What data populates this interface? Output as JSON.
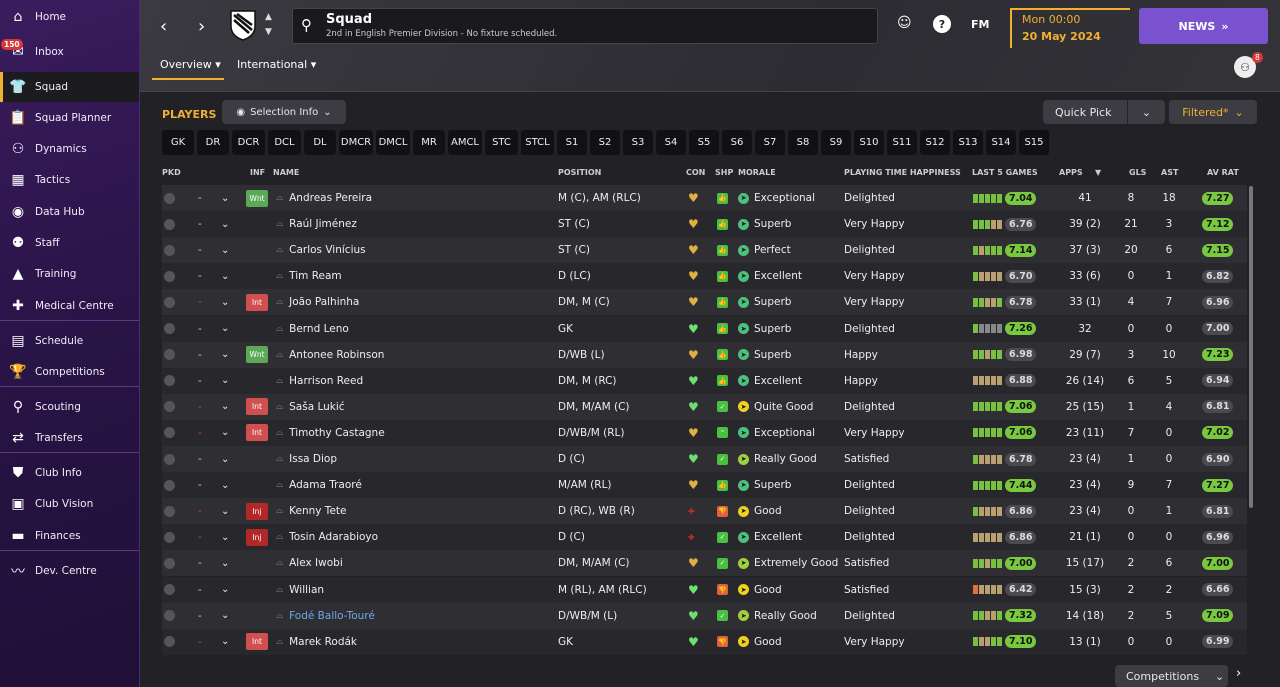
{
  "sidebar": {
    "items": [
      {
        "label": "Home",
        "icon": "home-icon",
        "glyph": "⌂",
        "badge": ""
      },
      {
        "label": "Inbox",
        "icon": "inbox-icon",
        "glyph": "✉",
        "badge": "150"
      },
      {
        "label": "Squad",
        "icon": "shirt-icon",
        "glyph": "👕",
        "badge": ""
      },
      {
        "label": "Squad Planner",
        "icon": "planner-icon",
        "glyph": "📋",
        "badge": ""
      },
      {
        "label": "Dynamics",
        "icon": "dynamics-icon",
        "glyph": "⚇",
        "badge": ""
      },
      {
        "label": "Tactics",
        "icon": "tactics-icon",
        "glyph": "▦",
        "badge": ""
      },
      {
        "label": "Data Hub",
        "icon": "data-hub-icon",
        "glyph": "◉",
        "badge": ""
      },
      {
        "label": "Staff",
        "icon": "staff-icon",
        "glyph": "⚉",
        "badge": ""
      },
      {
        "label": "Training",
        "icon": "training-icon",
        "glyph": "▲",
        "badge": ""
      },
      {
        "label": "Medical Centre",
        "icon": "medical-icon",
        "glyph": "✚",
        "badge": ""
      },
      {
        "label": "Schedule",
        "icon": "calendar-icon",
        "glyph": "▤",
        "badge": ""
      },
      {
        "label": "Competitions",
        "icon": "trophy-icon",
        "glyph": "🏆",
        "badge": ""
      },
      {
        "label": "Scouting",
        "icon": "search-icon",
        "glyph": "⚲",
        "badge": ""
      },
      {
        "label": "Transfers",
        "icon": "transfers-icon",
        "glyph": "⇄",
        "badge": ""
      },
      {
        "label": "Club Info",
        "icon": "shield-icon",
        "glyph": "⛊",
        "badge": ""
      },
      {
        "label": "Club Vision",
        "icon": "briefcase-icon",
        "glyph": "▣",
        "badge": ""
      },
      {
        "label": "Finances",
        "icon": "money-icon",
        "glyph": "▬",
        "badge": ""
      },
      {
        "label": "Dev. Centre",
        "icon": "dev-centre-icon",
        "glyph": "〰",
        "badge": ""
      }
    ]
  },
  "header": {
    "title": "Squad",
    "subtitle": "2nd in English Premier Division - No fixture scheduled.",
    "icons": {
      "fa_glyph": "☺",
      "help_glyph": "?",
      "fm_label": "FM"
    },
    "date_time": "Mon 00:00",
    "date_day": "20 May 2024",
    "news_label": "NEWS",
    "news_arrows": "»",
    "profile_badge": "8",
    "tabs": [
      {
        "label": "Overview ▾"
      },
      {
        "label": "International ▾"
      }
    ]
  },
  "toolbar": {
    "players_label": "PLAYERS",
    "selection_info": "Selection Info",
    "quick_pick": "Quick Pick",
    "filtered": "Filtered*"
  },
  "position_filters": [
    "GK",
    "DR",
    "DCR",
    "DCL",
    "DL",
    "DMCR",
    "DMCL",
    "MR",
    "AMCL",
    "STC",
    "STCL",
    "S1",
    "S2",
    "S3",
    "S4",
    "S5",
    "S6",
    "S7",
    "S8",
    "S9",
    "S10",
    "S11",
    "S12",
    "S13",
    "S14",
    "S15"
  ],
  "columns": {
    "pkd": "PKD",
    "inf": "INF",
    "name": "NAME",
    "position": "POSITION",
    "con": "CON",
    "shp": "SHP",
    "morale": "MORALE",
    "pth": "PLAYING TIME HAPPINESS",
    "last5": "LAST 5 GAMES",
    "apps": "APPS",
    "apps_sort": "▼",
    "gls": "GLS",
    "ast": "AST",
    "avrat": "AV RAT"
  },
  "players": [
    {
      "name": "Andreas Pereira",
      "inf": "Wnt",
      "sel_red": false,
      "position": "M (C), AM (RLC)",
      "con": "gold",
      "shp": "thumb",
      "morale": "Exceptional",
      "morale_color": "#4cc080",
      "pth": "Delighted",
      "form": [
        "#7ac040",
        "#7ac040",
        "#7ac040",
        "#7ac040",
        "#7ac040"
      ],
      "last5": "7.04",
      "last5_good": true,
      "apps": "41",
      "gls": "8",
      "ast": "18",
      "avrat": "7.27",
      "avrat_good": true
    },
    {
      "name": "Raúl Jiménez",
      "inf": "",
      "sel_red": false,
      "position": "ST (C)",
      "con": "gold",
      "shp": "thumb",
      "morale": "Superb",
      "morale_color": "#4cc080",
      "pth": "Very Happy",
      "form": [
        "#7ac040",
        "#7ac040",
        "#7ac040",
        "#b8a070",
        "#b8a070"
      ],
      "last5": "6.76",
      "last5_good": false,
      "apps": "39 (2)",
      "gls": "21",
      "ast": "3",
      "avrat": "7.12",
      "avrat_good": true
    },
    {
      "name": "Carlos Vinícius",
      "inf": "",
      "sel_red": false,
      "position": "ST (C)",
      "con": "gold",
      "shp": "thumb",
      "morale": "Perfect",
      "morale_color": "#4cc080",
      "pth": "Delighted",
      "form": [
        "#7ac040",
        "#b8a070",
        "#7ac040",
        "#7ac040",
        "#7ac040"
      ],
      "last5": "7.14",
      "last5_good": true,
      "apps": "37 (3)",
      "gls": "20",
      "ast": "6",
      "avrat": "7.15",
      "avrat_good": true
    },
    {
      "name": "Tim Ream",
      "inf": "",
      "sel_red": false,
      "position": "D (LC)",
      "con": "gold",
      "shp": "thumb",
      "morale": "Excellent",
      "morale_color": "#4cc080",
      "pth": "Very Happy",
      "form": [
        "#7ac040",
        "#b8a070",
        "#b8a070",
        "#b8a070",
        "#b8a070"
      ],
      "last5": "6.70",
      "last5_good": false,
      "apps": "33 (6)",
      "gls": "0",
      "ast": "1",
      "avrat": "6.82",
      "avrat_good": false
    },
    {
      "name": "João Palhinha",
      "inf": "Int",
      "sel_red": true,
      "position": "DM, M (C)",
      "con": "gold",
      "shp": "thumb",
      "morale": "Superb",
      "morale_color": "#4cc080",
      "pth": "Very Happy",
      "form": [
        "#7ac040",
        "#7ac040",
        "#b8a070",
        "#b8a070",
        "#7ac040"
      ],
      "last5": "6.78",
      "last5_good": false,
      "apps": "33 (1)",
      "gls": "4",
      "ast": "7",
      "avrat": "6.96",
      "avrat_good": false
    },
    {
      "name": "Bernd Leno",
      "inf": "",
      "sel_red": false,
      "position": "GK",
      "con": "green",
      "shp": "thumb",
      "morale": "Superb",
      "morale_color": "#4cc080",
      "pth": "Delighted",
      "form": [
        "#7ac040",
        "#888888",
        "#888888",
        "#888888",
        "#888888"
      ],
      "last5": "7.26",
      "last5_good": true,
      "apps": "32",
      "gls": "0",
      "ast": "0",
      "avrat": "7.00",
      "avrat_good": false
    },
    {
      "name": "Antonee Robinson",
      "inf": "Wnt",
      "sel_red": false,
      "position": "D/WB (L)",
      "con": "gold",
      "shp": "thumb",
      "morale": "Superb",
      "morale_color": "#4cc080",
      "pth": "Happy",
      "form": [
        "#7ac040",
        "#7ac040",
        "#b8a070",
        "#7ac040",
        "#7ac040"
      ],
      "last5": "6.98",
      "last5_good": false,
      "apps": "29 (7)",
      "gls": "3",
      "ast": "10",
      "avrat": "7.23",
      "avrat_good": true
    },
    {
      "name": "Harrison Reed",
      "inf": "",
      "sel_red": false,
      "position": "DM, M (RC)",
      "con": "green",
      "shp": "thumb",
      "morale": "Excellent",
      "morale_color": "#4cc080",
      "pth": "Happy",
      "form": [
        "#b8a070",
        "#b8a070",
        "#b8a070",
        "#b8a070",
        "#b8a070"
      ],
      "last5": "6.88",
      "last5_good": false,
      "apps": "26 (14)",
      "gls": "6",
      "ast": "5",
      "avrat": "6.94",
      "avrat_good": false
    },
    {
      "name": "Saša Lukić",
      "inf": "Int",
      "sel_red": true,
      "position": "DM, M/AM (C)",
      "con": "green",
      "shp": "check",
      "morale": "Quite Good",
      "morale_color": "#f0d020",
      "pth": "Delighted",
      "form": [
        "#7ac040",
        "#7ac040",
        "#7ac040",
        "#7ac040",
        "#7ac040"
      ],
      "last5": "7.06",
      "last5_good": true,
      "apps": "25 (15)",
      "gls": "1",
      "ast": "4",
      "avrat": "6.81",
      "avrat_good": false
    },
    {
      "name": "Timothy Castagne",
      "inf": "Int",
      "sel_red": true,
      "position": "D/WB/M (RL)",
      "con": "gold",
      "shp": "up",
      "morale": "Exceptional",
      "morale_color": "#4cc080",
      "pth": "Very Happy",
      "form": [
        "#7ac040",
        "#7ac040",
        "#7ac040",
        "#7ac040",
        "#7ac040"
      ],
      "last5": "7.06",
      "last5_good": true,
      "apps": "23 (11)",
      "gls": "7",
      "ast": "0",
      "avrat": "7.02",
      "avrat_good": true
    },
    {
      "name": "Issa Diop",
      "inf": "",
      "sel_red": false,
      "position": "D (C)",
      "con": "green",
      "shp": "check",
      "morale": "Really Good",
      "morale_color": "#a0d040",
      "pth": "Satisfied",
      "form": [
        "#7ac040",
        "#b8a070",
        "#b8a070",
        "#b8a070",
        "#b8a070"
      ],
      "last5": "6.78",
      "last5_good": false,
      "apps": "23 (4)",
      "gls": "1",
      "ast": "0",
      "avrat": "6.90",
      "avrat_good": false
    },
    {
      "name": "Adama Traoré",
      "inf": "",
      "sel_red": false,
      "position": "M/AM (RL)",
      "con": "gold",
      "shp": "thumb",
      "morale": "Superb",
      "morale_color": "#4cc080",
      "pth": "Delighted",
      "form": [
        "#7ac040",
        "#7ac040",
        "#7ac040",
        "#7ac040",
        "#7ac040"
      ],
      "last5": "7.44",
      "last5_good": true,
      "apps": "23 (4)",
      "gls": "9",
      "ast": "7",
      "avrat": "7.27",
      "avrat_good": true
    },
    {
      "name": "Kenny Tete",
      "inf": "Inj",
      "sel_red": true,
      "position": "D (RC), WB (R)",
      "con": "injured",
      "shp": "thumbdown",
      "morale": "Good",
      "morale_color": "#f0d020",
      "pth": "Delighted",
      "form": [
        "#7ac040",
        "#b8a070",
        "#b8a070",
        "#b8a070",
        "#b8a070"
      ],
      "last5": "6.86",
      "last5_good": false,
      "apps": "23 (4)",
      "gls": "0",
      "ast": "1",
      "avrat": "6.81",
      "avrat_good": false
    },
    {
      "name": "Tosin Adarabioyo",
      "inf": "Inj",
      "sel_red": true,
      "position": "D (C)",
      "con": "injured",
      "shp": "check",
      "morale": "Excellent",
      "morale_color": "#4cc080",
      "pth": "Delighted",
      "form": [
        "#b8a070",
        "#b8a070",
        "#b8a070",
        "#b8a070",
        "#b8a070"
      ],
      "last5": "6.86",
      "last5_good": false,
      "apps": "21 (1)",
      "gls": "0",
      "ast": "0",
      "avrat": "6.96",
      "avrat_good": false
    },
    {
      "name": "Alex Iwobi",
      "inf": "",
      "sel_red": false,
      "position": "DM, M/AM (C)",
      "con": "gold",
      "shp": "check",
      "morale": "Extremely Good",
      "morale_color": "#a0d040",
      "pth": "Satisfied",
      "form": [
        "#7ac040",
        "#7ac040",
        "#b8a070",
        "#7ac040",
        "#7ac040"
      ],
      "last5": "7.00",
      "last5_good": true,
      "apps": "15 (17)",
      "gls": "2",
      "ast": "6",
      "avrat": "7.00",
      "avrat_good": true
    },
    {
      "name": "Willian",
      "inf": "",
      "sel_red": false,
      "position": "M (RL), AM (RLC)",
      "con": "green",
      "shp": "thumbdown",
      "morale": "Good",
      "morale_color": "#f0d020",
      "pth": "Satisfied",
      "form": [
        "#e07040",
        "#b8a070",
        "#b8a070",
        "#b8a070",
        "#b8a070"
      ],
      "last5": "6.42",
      "last5_good": false,
      "apps": "15 (3)",
      "gls": "2",
      "ast": "2",
      "avrat": "6.66",
      "avrat_good": false
    },
    {
      "name": "Fodé Ballo-Touré",
      "inf": "",
      "sel_red": false,
      "link": true,
      "position": "D/WB/M (L)",
      "con": "green",
      "shp": "check",
      "morale": "Really Good",
      "morale_color": "#a0d040",
      "pth": "Delighted",
      "form": [
        "#7ac040",
        "#7ac040",
        "#b8a070",
        "#b8a070",
        "#7ac040"
      ],
      "last5": "7.32",
      "last5_good": true,
      "apps": "14 (18)",
      "gls": "2",
      "ast": "5",
      "avrat": "7.09",
      "avrat_good": true
    },
    {
      "name": "Marek Rodák",
      "inf": "Int",
      "sel_red": true,
      "position": "GK",
      "con": "green",
      "shp": "thumbdown",
      "morale": "Good",
      "morale_color": "#f0d020",
      "pth": "Very Happy",
      "form": [
        "#7ac040",
        "#b8a070",
        "#b8a070",
        "#7ac040",
        "#7ac040"
      ],
      "last5": "7.10",
      "last5_good": true,
      "apps": "13 (1)",
      "gls": "0",
      "ast": "0",
      "avrat": "6.99",
      "avrat_good": false
    }
  ],
  "footer": {
    "competitions": "Competitions"
  },
  "colors": {
    "accent": "#f0b030",
    "news": "#7a52d0",
    "sidebar": "#2a1448",
    "good_rating": "#78c840"
  }
}
